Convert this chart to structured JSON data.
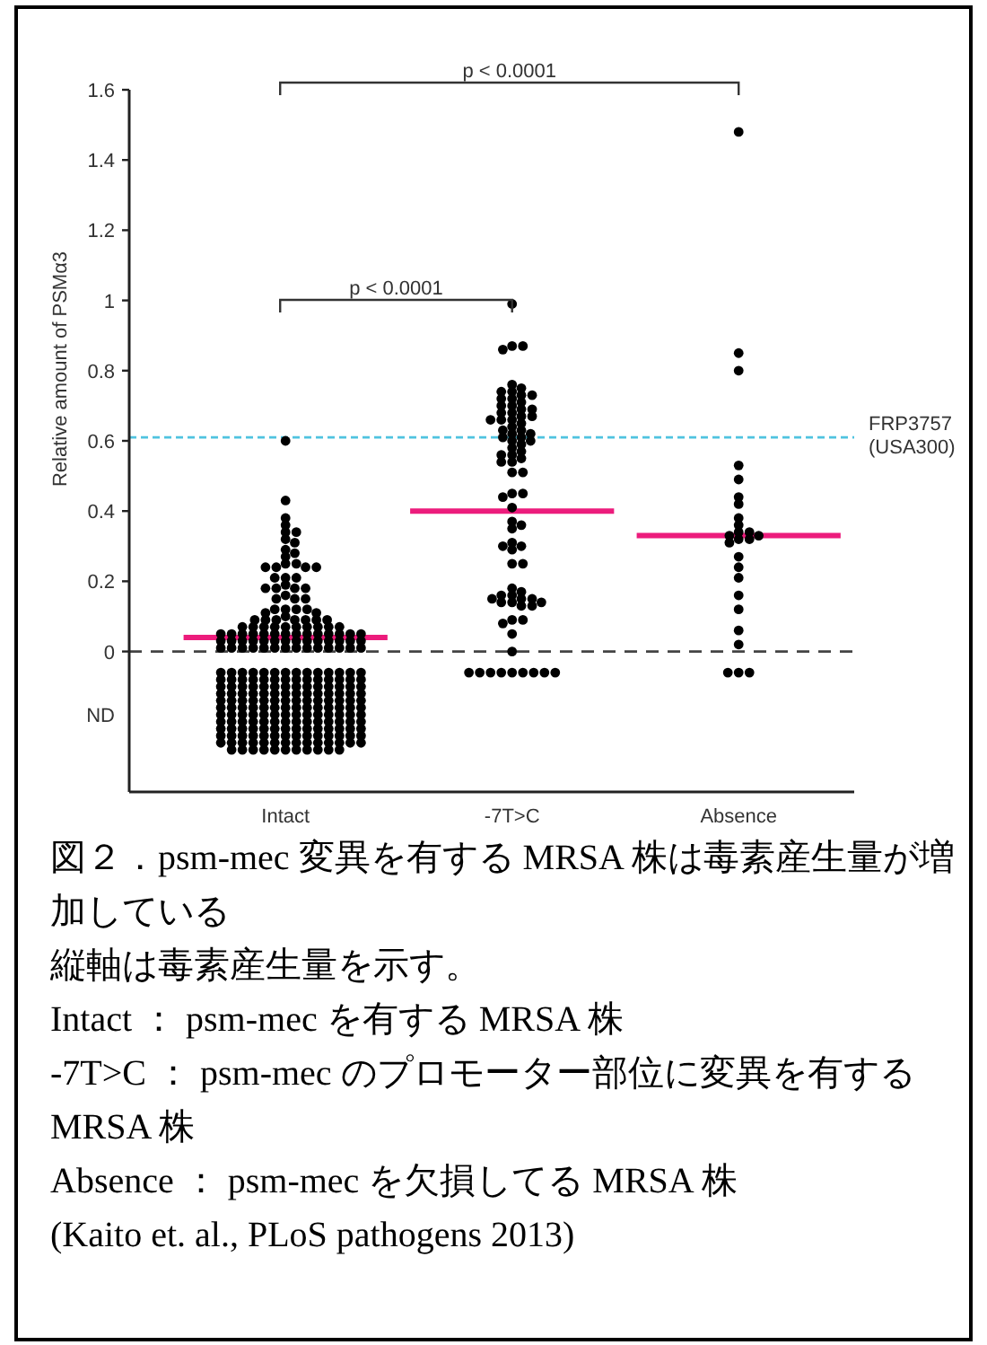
{
  "chart_data": {
    "type": "scatter",
    "ylabel": "Relative amount of PSMα3",
    "categories": [
      "Intact",
      "-7T>C",
      "Absence"
    ],
    "ylim": [
      -0.4,
      1.6
    ],
    "yticks": [
      {
        "value": -0.18,
        "label": "ND"
      },
      0,
      0.2,
      0.4,
      0.6,
      0.8,
      1,
      1.2,
      1.4,
      1.6
    ],
    "marker": "circle",
    "series": [
      {
        "color": "#000000",
        "x": [
          "Intact",
          "Intact",
          "Intact",
          "Intact",
          "Intact",
          "Intact",
          "Intact",
          "Intact",
          "Intact",
          "Intact",
          "Intact",
          "Intact",
          "Intact",
          "Intact",
          "Intact",
          "Intact",
          "Intact",
          "Intact",
          "Intact",
          "Intact",
          "Intact",
          "Intact",
          "Intact",
          "Intact",
          "Intact",
          "Intact",
          "Intact",
          "Intact",
          "Intact",
          "Intact",
          "Intact",
          "Intact",
          "Intact",
          "Intact",
          "Intact",
          "Intact",
          "Intact",
          "Intact",
          "Intact",
          "Intact",
          "Intact",
          "Intact",
          "Intact",
          "Intact",
          "Intact",
          "Intact",
          "Intact",
          "Intact",
          "Intact",
          "Intact",
          "Intact",
          "Intact",
          "Intact",
          "Intact",
          "Intact",
          "Intact",
          "Intact",
          "Intact",
          "Intact",
          "Intact",
          "Intact",
          "Intact",
          "Intact",
          "Intact",
          "Intact",
          "Intact",
          "Intact",
          "Intact",
          "Intact",
          "Intact",
          "Intact",
          "Intact",
          "Intact",
          "Intact",
          "Intact",
          "Intact",
          "Intact",
          "Intact",
          "Intact",
          "Intact",
          "Intact",
          "Intact",
          "Intact",
          "Intact",
          "Intact",
          "Intact",
          "Intact",
          "Intact",
          "Intact",
          "Intact",
          "Intact",
          "Intact",
          "Intact",
          "Intact",
          "Intact",
          "Intact",
          "Intact",
          "Intact",
          "Intact",
          "Intact",
          "Intact",
          "Intact",
          "Intact",
          "Intact",
          "Intact",
          "Intact",
          "Intact",
          "Intact",
          "Intact",
          "Intact",
          "Intact",
          "Intact",
          "Intact",
          "Intact",
          "Intact",
          "Intact",
          "Intact",
          "Intact",
          "Intact",
          "Intact",
          "Intact",
          "Intact",
          "Intact",
          "Intact",
          "Intact",
          "Intact",
          "Intact",
          "Intact",
          "Intact",
          "Intact",
          "Intact",
          "Intact",
          "Intact",
          "Intact",
          "Intact",
          "Intact",
          "Intact",
          "Intact",
          "Intact",
          "Intact",
          "Intact",
          "Intact",
          "Intact",
          "Intact",
          "Intact",
          "Intact",
          "Intact",
          "Intact",
          "Intact",
          "Intact",
          "Intact",
          "Intact",
          "Intact",
          "Intact",
          "Intact",
          "Intact",
          "Intact",
          "Intact",
          "Intact",
          "Intact",
          "Intact",
          "Intact",
          "Intact",
          "Intact",
          "Intact",
          "Intact",
          "Intact",
          "Intact",
          "Intact",
          "Intact",
          "Intact",
          "Intact",
          "Intact",
          "Intact",
          "Intact",
          "Intact",
          "Intact",
          "Intact",
          "Intact",
          "Intact",
          "Intact",
          "Intact",
          "Intact",
          "Intact",
          "Intact",
          "Intact",
          "Intact",
          "Intact",
          "Intact",
          "Intact",
          "Intact",
          "Intact",
          "Intact",
          "Intact",
          "Intact",
          "Intact",
          "Intact",
          "Intact",
          "Intact",
          "Intact",
          "Intact",
          "Intact",
          "Intact",
          "Intact",
          "Intact",
          "Intact",
          "Intact",
          "Intact",
          "Intact",
          "Intact",
          "Intact",
          "Intact",
          "Intact",
          "Intact",
          "Intact",
          "Intact",
          "Intact",
          "Intact",
          "Intact",
          "Intact",
          "Intact",
          "Intact",
          "Intact",
          "Intact",
          "Intact",
          "Intact",
          "Intact",
          "Intact",
          "Intact",
          "Intact",
          "Intact",
          "Intact",
          "Intact",
          "Intact",
          "Intact",
          "Intact",
          "Intact",
          "Intact",
          "Intact",
          "Intact",
          "Intact",
          "Intact",
          "Intact",
          "Intact",
          "Intact",
          "Intact",
          "Intact",
          "Intact",
          "Intact",
          "Intact",
          "Intact",
          "Intact",
          "Intact",
          "Intact",
          "Intact",
          "Intact",
          "Intact",
          "Intact",
          "Intact",
          "Intact"
        ],
        "values": [
          0.6,
          0.43,
          0.38,
          0.36,
          0.34,
          0.34,
          0.32,
          0.31,
          0.29,
          0.28,
          0.27,
          0.25,
          0.25,
          0.24,
          0.24,
          0.24,
          0.24,
          0.21,
          0.21,
          0.21,
          0.19,
          0.18,
          0.18,
          0.18,
          0.18,
          0.16,
          0.15,
          0.15,
          0.15,
          0.12,
          0.12,
          0.12,
          0.12,
          0.11,
          0.11,
          0.1,
          0.09,
          0.09,
          0.09,
          0.09,
          0.09,
          0.09,
          0.09,
          0.07,
          0.07,
          0.07,
          0.07,
          0.07,
          0.07,
          0.07,
          0.07,
          0.07,
          0.07,
          0.05,
          0.05,
          0.05,
          0.05,
          0.05,
          0.05,
          0.05,
          0.05,
          0.05,
          0.05,
          0.05,
          0.05,
          0.05,
          0.05,
          0.03,
          0.03,
          0.03,
          0.03,
          0.03,
          0.03,
          0.03,
          0.03,
          0.03,
          0.03,
          0.03,
          0.03,
          0.03,
          0.03,
          0.01,
          0.01,
          0.01,
          0.01,
          0.01,
          0.01,
          0.01,
          0.01,
          0.01,
          0.01,
          0.01,
          0.01,
          0.01,
          0.01,
          -0.06,
          -0.06,
          -0.06,
          -0.06,
          -0.06,
          -0.06,
          -0.06,
          -0.06,
          -0.06,
          -0.06,
          -0.06,
          -0.06,
          -0.06,
          -0.06,
          -0.08,
          -0.08,
          -0.08,
          -0.08,
          -0.08,
          -0.08,
          -0.08,
          -0.08,
          -0.08,
          -0.08,
          -0.08,
          -0.08,
          -0.08,
          -0.08,
          -0.1,
          -0.1,
          -0.1,
          -0.1,
          -0.1,
          -0.1,
          -0.1,
          -0.1,
          -0.1,
          -0.1,
          -0.1,
          -0.1,
          -0.1,
          -0.1,
          -0.12,
          -0.12,
          -0.12,
          -0.12,
          -0.12,
          -0.12,
          -0.12,
          -0.12,
          -0.12,
          -0.12,
          -0.12,
          -0.12,
          -0.12,
          -0.12,
          -0.14,
          -0.14,
          -0.14,
          -0.14,
          -0.14,
          -0.14,
          -0.14,
          -0.14,
          -0.14,
          -0.14,
          -0.14,
          -0.14,
          -0.14,
          -0.14,
          -0.16,
          -0.16,
          -0.16,
          -0.16,
          -0.16,
          -0.16,
          -0.16,
          -0.16,
          -0.16,
          -0.16,
          -0.16,
          -0.16,
          -0.16,
          -0.16,
          -0.18,
          -0.18,
          -0.18,
          -0.18,
          -0.18,
          -0.18,
          -0.18,
          -0.18,
          -0.18,
          -0.18,
          -0.18,
          -0.18,
          -0.18,
          -0.18,
          -0.2,
          -0.2,
          -0.2,
          -0.2,
          -0.2,
          -0.2,
          -0.2,
          -0.2,
          -0.2,
          -0.2,
          -0.2,
          -0.2,
          -0.2,
          -0.2,
          -0.22,
          -0.22,
          -0.22,
          -0.22,
          -0.22,
          -0.22,
          -0.22,
          -0.22,
          -0.22,
          -0.22,
          -0.22,
          -0.22,
          -0.22,
          -0.22,
          -0.24,
          -0.24,
          -0.24,
          -0.24,
          -0.24,
          -0.24,
          -0.24,
          -0.24,
          -0.24,
          -0.24,
          -0.24,
          -0.24,
          -0.24,
          -0.24,
          -0.26,
          -0.26,
          -0.26,
          -0.26,
          -0.26,
          -0.26,
          -0.26,
          -0.26,
          -0.26,
          -0.26,
          -0.26,
          -0.26,
          -0.26,
          -0.26,
          -0.28,
          -0.28,
          -0.28,
          -0.28,
          -0.28,
          -0.28,
          -0.28,
          -0.28,
          -0.28,
          -0.28,
          -0.28
        ]
      },
      {
        "color": "#000000",
        "x": [
          "-7T>C",
          "-7T>C",
          "-7T>C",
          "-7T>C",
          "-7T>C",
          "-7T>C",
          "-7T>C",
          "-7T>C",
          "-7T>C",
          "-7T>C",
          "-7T>C",
          "-7T>C",
          "-7T>C",
          "-7T>C",
          "-7T>C",
          "-7T>C",
          "-7T>C",
          "-7T>C",
          "-7T>C",
          "-7T>C",
          "-7T>C",
          "-7T>C",
          "-7T>C",
          "-7T>C",
          "-7T>C",
          "-7T>C",
          "-7T>C",
          "-7T>C",
          "-7T>C",
          "-7T>C",
          "-7T>C",
          "-7T>C",
          "-7T>C",
          "-7T>C",
          "-7T>C",
          "-7T>C",
          "-7T>C",
          "-7T>C",
          "-7T>C",
          "-7T>C",
          "-7T>C",
          "-7T>C",
          "-7T>C",
          "-7T>C",
          "-7T>C",
          "-7T>C",
          "-7T>C",
          "-7T>C",
          "-7T>C",
          "-7T>C",
          "-7T>C",
          "-7T>C",
          "-7T>C",
          "-7T>C",
          "-7T>C",
          "-7T>C",
          "-7T>C",
          "-7T>C",
          "-7T>C",
          "-7T>C",
          "-7T>C",
          "-7T>C",
          "-7T>C",
          "-7T>C",
          "-7T>C",
          "-7T>C",
          "-7T>C",
          "-7T>C",
          "-7T>C",
          "-7T>C",
          "-7T>C",
          "-7T>C",
          "-7T>C",
          "-7T>C",
          "-7T>C",
          "-7T>C",
          "-7T>C",
          "-7T>C",
          "-7T>C",
          "-7T>C",
          "-7T>C",
          "-7T>C",
          "-7T>C"
        ],
        "values": [
          0.99,
          0.87,
          0.87,
          0.86,
          0.76,
          0.75,
          0.74,
          0.74,
          0.73,
          0.73,
          0.72,
          0.72,
          0.71,
          0.7,
          0.7,
          0.69,
          0.69,
          0.68,
          0.68,
          0.67,
          0.67,
          0.66,
          0.66,
          0.66,
          0.65,
          0.64,
          0.63,
          0.63,
          0.62,
          0.62,
          0.61,
          0.61,
          0.6,
          0.6,
          0.59,
          0.58,
          0.57,
          0.56,
          0.56,
          0.55,
          0.54,
          0.54,
          0.51,
          0.51,
          0.45,
          0.45,
          0.44,
          0.41,
          0.37,
          0.36,
          0.35,
          0.31,
          0.3,
          0.3,
          0.29,
          0.25,
          0.25,
          0.18,
          0.17,
          0.16,
          0.16,
          0.15,
          0.15,
          0.15,
          0.14,
          0.14,
          0.14,
          0.13,
          0.13,
          0.09,
          0.09,
          0.08,
          0.05,
          0,
          -0.06,
          -0.06,
          -0.06,
          -0.06,
          -0.06,
          -0.06,
          -0.06,
          -0.06,
          -0.06
        ]
      },
      {
        "color": "#000000",
        "x": [
          "Absence",
          "Absence",
          "Absence",
          "Absence",
          "Absence",
          "Absence",
          "Absence",
          "Absence",
          "Absence",
          "Absence",
          "Absence",
          "Absence",
          "Absence",
          "Absence",
          "Absence",
          "Absence",
          "Absence",
          "Absence",
          "Absence",
          "Absence",
          "Absence",
          "Absence",
          "Absence",
          "Absence",
          "Absence",
          "Absence"
        ],
        "values": [
          1.48,
          0.85,
          0.8,
          0.53,
          0.49,
          0.44,
          0.42,
          0.38,
          0.36,
          0.34,
          0.34,
          0.33,
          0.33,
          0.32,
          0.32,
          0.31,
          0.27,
          0.24,
          0.21,
          0.16,
          0.12,
          0.06,
          0.02,
          -0.06,
          -0.06,
          -0.06
        ]
      },
      {
        "type": "box",
        "color": "#ec1c7c",
        "boxes": [
          {
            "low": 0.04,
            "q1": 0.04,
            "median": 0.04,
            "q3": 0.04,
            "high": 0.04
          },
          {
            "low": 0.4,
            "q1": 0.4,
            "median": 0.4,
            "q3": 0.4,
            "high": 0.4
          },
          {
            "low": 0.33,
            "q1": 0.33,
            "median": 0.33,
            "q3": 0.33,
            "high": 0.33
          }
        ]
      }
    ],
    "ref_lines": [
      {
        "axis": "y",
        "value": 0,
        "color": "#444444",
        "line_style": "dashed"
      },
      {
        "axis": "y",
        "value": 0.61,
        "color": "#4fc3e0",
        "line_style": "dashed",
        "label": "FRP3757\n(USA300)"
      }
    ],
    "annotations": [
      "p < 0.0001",
      "p < 0.0001",
      "図２．psm-mec 変異を有する MRSA 株は毒素産生量が増加している",
      "縦軸は毒素産生量を示す。",
      "Intact ： psm-mec を有する MRSA 株",
      "-7T>C ： psm-mec のプロモーター部位に変異を有する MRSA 株",
      "Absence ： psm-mec を欠損してる MRSA 株",
      "(Kaito et. al., PLoS pathogens 2013)"
    ]
  }
}
